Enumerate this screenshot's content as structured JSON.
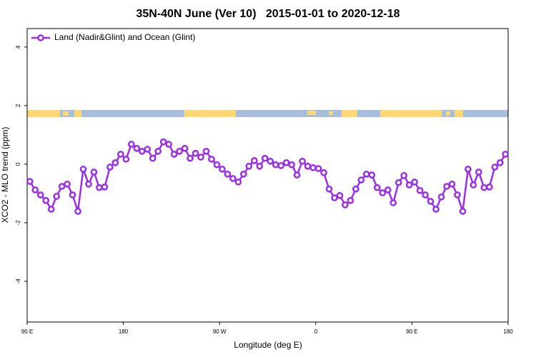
{
  "chart_data": {
    "type": "line",
    "title": "35N-40N June (Ver 10)   2015-01-01 to 2020-12-18",
    "x_label": "Longitude (deg E)",
    "y_label": "XCO2 - MLO trend (ppm)",
    "xlim": [
      90,
      540
    ],
    "ylim": [
      -5.39,
      4.63
    ],
    "xticks": [
      {
        "value": 90,
        "label": "90 E"
      },
      {
        "value": 180,
        "label": "180"
      },
      {
        "value": 270,
        "label": "90 W"
      },
      {
        "value": 360,
        "label": "0"
      },
      {
        "value": 450,
        "label": "90 E"
      },
      {
        "value": 540,
        "label": "180"
      }
    ],
    "yticks": [
      -4,
      -2,
      0,
      2,
      4
    ],
    "legend_position": "top-left",
    "x": [
      92.5,
      97.5,
      102.5,
      107.5,
      112.5,
      117.5,
      122.5,
      127.5,
      132.5,
      137.5,
      142.5,
      147.5,
      152.5,
      157.5,
      162.5,
      167.5,
      172.5,
      177.5,
      182.5,
      187.5,
      192.5,
      197.5,
      202.5,
      207.5,
      212.5,
      217.5,
      222.5,
      227.5,
      232.5,
      237.5,
      242.5,
      247.5,
      252.5,
      257.5,
      262.5,
      267.5,
      272.5,
      277.5,
      282.5,
      287.5,
      292.5,
      297.5,
      302.5,
      307.5,
      312.5,
      317.5,
      322.5,
      327.5,
      332.5,
      337.5,
      342.5,
      347.5,
      352.5,
      357.5,
      362.5,
      367.5,
      372.5,
      377.5,
      382.5,
      387.5,
      392.5,
      397.5,
      402.5,
      407.5,
      412.5,
      417.5,
      422.5,
      427.5,
      432.5,
      437.5,
      442.5,
      447.5,
      452.5,
      457.5,
      462.5,
      467.5,
      472.5,
      477.5,
      482.5,
      487.5,
      492.5,
      497.5,
      502.5,
      507.5,
      512.5,
      517.5,
      522.5,
      527.5,
      532.5,
      537.5
    ],
    "series": [
      {
        "name": "Land (Nadir&Glint) and Ocean (Glint)",
        "color": "#9b2fe3",
        "values": [
          -0.59,
          -0.88,
          -1.05,
          -1.24,
          -1.54,
          -1.1,
          -0.76,
          -0.68,
          -1.05,
          -1.61,
          -0.17,
          -0.68,
          -0.27,
          -0.8,
          -0.78,
          -0.1,
          0.05,
          0.34,
          0.17,
          0.68,
          0.54,
          0.44,
          0.51,
          0.2,
          0.44,
          0.76,
          0.68,
          0.34,
          0.44,
          0.54,
          0.2,
          0.37,
          0.24,
          0.44,
          0.17,
          -0.02,
          -0.17,
          -0.34,
          -0.49,
          -0.61,
          -0.34,
          -0.07,
          0.12,
          -0.07,
          0.2,
          0.1,
          -0.02,
          -0.05,
          0.05,
          -0.02,
          -0.37,
          0.1,
          -0.07,
          -0.12,
          -0.15,
          -0.29,
          -0.85,
          -1.15,
          -1.07,
          -1.39,
          -1.24,
          -0.85,
          -0.54,
          -0.34,
          -0.37,
          -0.8,
          -0.98,
          -0.88,
          -1.32,
          -0.63,
          -0.39,
          -0.71,
          -0.61,
          -0.9,
          -1.05,
          -1.27,
          -1.54,
          -1.12,
          -0.76,
          -0.68,
          -1.05,
          -1.61,
          -0.17,
          -0.71,
          -0.27,
          -0.8,
          -0.78,
          -0.1,
          0.05,
          0.34
        ]
      }
    ]
  }
}
